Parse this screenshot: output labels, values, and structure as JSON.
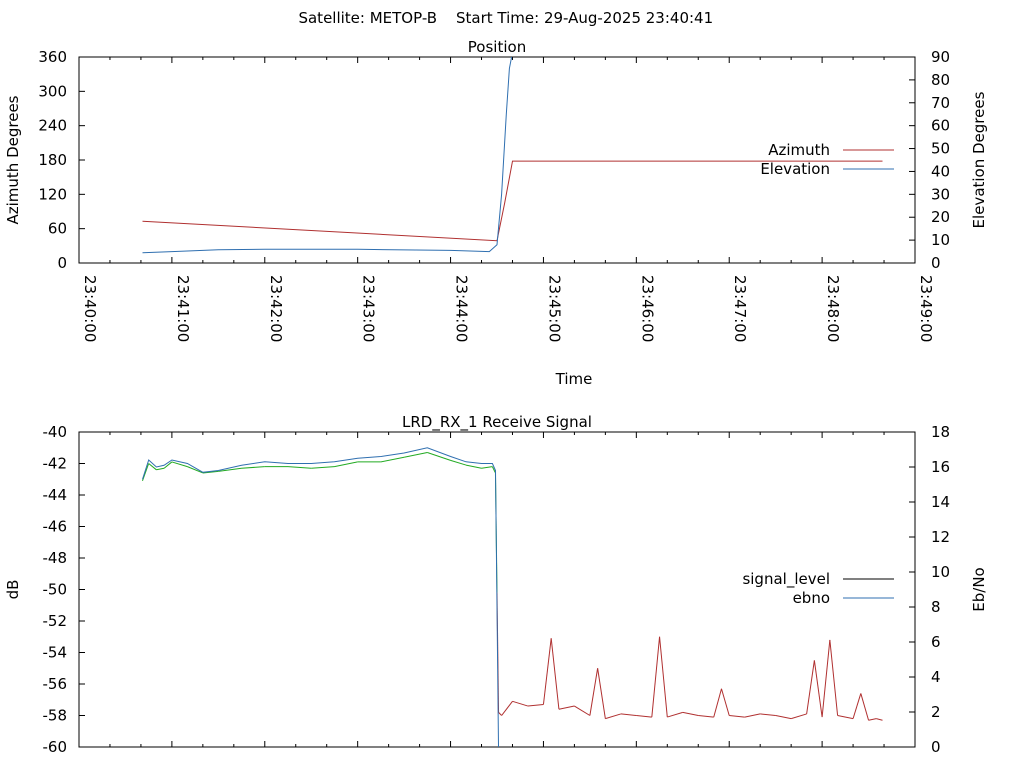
{
  "header": {
    "satellite": "Satellite: METOP-B",
    "start_time": "Start Time: 29-Aug-2025 23:40:41"
  },
  "colors": {
    "azimuth": "#b03030",
    "elevation": "#2f6fb0",
    "signal_level_legend": "#000000",
    "signal_level_high": "#22aa22",
    "signal_level_low": "#b03030",
    "ebno": "#2f6fb0",
    "frame": "#000000"
  },
  "chart_data": [
    {
      "type": "line",
      "title": "Position",
      "xlabel": "Time",
      "ylabel": "Azimuth Degrees",
      "y2label": "Elevation Degrees",
      "x_format": "HH:MM:SS",
      "xlim": [
        "23:40:00",
        "23:49:00"
      ],
      "xticks": [
        "23:40:00",
        "23:41:00",
        "23:42:00",
        "23:43:00",
        "23:44:00",
        "23:45:00",
        "23:46:00",
        "23:47:00",
        "23:48:00",
        "23:49:00"
      ],
      "ylim": [
        0,
        360
      ],
      "yticks": [
        0,
        60,
        120,
        180,
        240,
        300,
        360
      ],
      "y2lim": [
        0,
        90
      ],
      "y2ticks": [
        0,
        10,
        20,
        30,
        40,
        50,
        60,
        70,
        80,
        90
      ],
      "legend_position": "right",
      "series": [
        {
          "name": "Azimuth",
          "axis": "y",
          "color_key": "azimuth",
          "x": [
            "23:40:41",
            "23:44:30",
            "23:44:35",
            "23:44:40",
            "23:48:39"
          ],
          "y": [
            73,
            39,
            105,
            178,
            178
          ]
        },
        {
          "name": "Elevation",
          "axis": "y2",
          "color_key": "elevation",
          "x": [
            "23:40:41",
            "23:41:00",
            "23:41:30",
            "23:42:00",
            "23:43:00",
            "23:44:00",
            "23:44:25",
            "23:44:30",
            "23:44:33",
            "23:44:36",
            "23:44:38",
            "23:44:40"
          ],
          "y": [
            4.5,
            5,
            5.8,
            6,
            6,
            5.5,
            5,
            8,
            30,
            65,
            85,
            92
          ]
        }
      ]
    },
    {
      "type": "line",
      "title": "LRD_RX_1 Receive Signal",
      "ylabel": "dB",
      "y2label": "Eb/No",
      "xlim": [
        "23:40:00",
        "23:49:00"
      ],
      "ylim": [
        -60,
        -40
      ],
      "yticks": [
        -60,
        -58,
        -56,
        -54,
        -52,
        -50,
        -48,
        -46,
        -44,
        -42,
        -40
      ],
      "y2lim": [
        0,
        18
      ],
      "y2ticks": [
        0,
        2,
        4,
        6,
        8,
        10,
        12,
        14,
        16,
        18
      ],
      "legend_position": "right",
      "series": [
        {
          "name": "signal_level",
          "axis": "y",
          "legend_color_key": "signal_level_legend",
          "x": [
            "23:40:41",
            "23:40:45",
            "23:40:50",
            "23:40:55",
            "23:41:00",
            "23:41:10",
            "23:41:20",
            "23:41:30",
            "23:41:45",
            "23:42:00",
            "23:42:15",
            "23:42:30",
            "23:42:45",
            "23:43:00",
            "23:43:15",
            "23:43:30",
            "23:43:45",
            "23:44:00",
            "23:44:10",
            "23:44:20",
            "23:44:27",
            "23:44:29",
            "23:44:30",
            "23:44:31",
            "23:44:33",
            "23:44:40",
            "23:44:50",
            "23:45:00",
            "23:45:05",
            "23:45:10",
            "23:45:20",
            "23:45:30",
            "23:45:35",
            "23:45:40",
            "23:45:50",
            "23:46:00",
            "23:46:10",
            "23:46:15",
            "23:46:20",
            "23:46:30",
            "23:46:40",
            "23:46:50",
            "23:46:55",
            "23:47:00",
            "23:47:10",
            "23:47:20",
            "23:47:30",
            "23:47:40",
            "23:47:50",
            "23:47:55",
            "23:48:00",
            "23:48:05",
            "23:48:10",
            "23:48:20",
            "23:48:25",
            "23:48:30",
            "23:48:35",
            "23:48:39"
          ],
          "y": [
            -43.1,
            -42.0,
            -42.4,
            -42.3,
            -41.9,
            -42.2,
            -42.6,
            -42.5,
            -42.3,
            -42.2,
            -42.2,
            -42.3,
            -42.2,
            -41.9,
            -41.9,
            -41.6,
            -41.3,
            -41.8,
            -42.1,
            -42.3,
            -42.2,
            -42.6,
            -50.2,
            -57.8,
            -58.0,
            -57.1,
            -57.4,
            -57.3,
            -53.1,
            -57.6,
            -57.4,
            -58.0,
            -55.0,
            -58.2,
            -57.9,
            -58.0,
            -58.1,
            -53.0,
            -58.1,
            -57.8,
            -58.0,
            -58.1,
            -56.3,
            -58.0,
            -58.1,
            -57.9,
            -58.0,
            -58.2,
            -57.9,
            -54.5,
            -58.1,
            -53.2,
            -58.0,
            -58.2,
            -56.6,
            -58.3,
            -58.2,
            -58.3
          ]
        },
        {
          "name": "ebno",
          "axis": "y2",
          "color_key": "ebno",
          "x": [
            "23:40:41",
            "23:40:45",
            "23:40:50",
            "23:40:55",
            "23:41:00",
            "23:41:10",
            "23:41:20",
            "23:41:30",
            "23:41:45",
            "23:42:00",
            "23:42:15",
            "23:42:30",
            "23:42:45",
            "23:43:00",
            "23:43:15",
            "23:43:30",
            "23:43:45",
            "23:44:00",
            "23:44:10",
            "23:44:20",
            "23:44:27",
            "23:44:29",
            "23:44:30",
            "23:44:31"
          ],
          "y": [
            15.3,
            16.4,
            16.0,
            16.1,
            16.4,
            16.2,
            15.7,
            15.8,
            16.1,
            16.3,
            16.2,
            16.2,
            16.3,
            16.5,
            16.6,
            16.8,
            17.1,
            16.6,
            16.3,
            16.2,
            16.2,
            15.8,
            8.0,
            0.0
          ]
        }
      ]
    }
  ]
}
